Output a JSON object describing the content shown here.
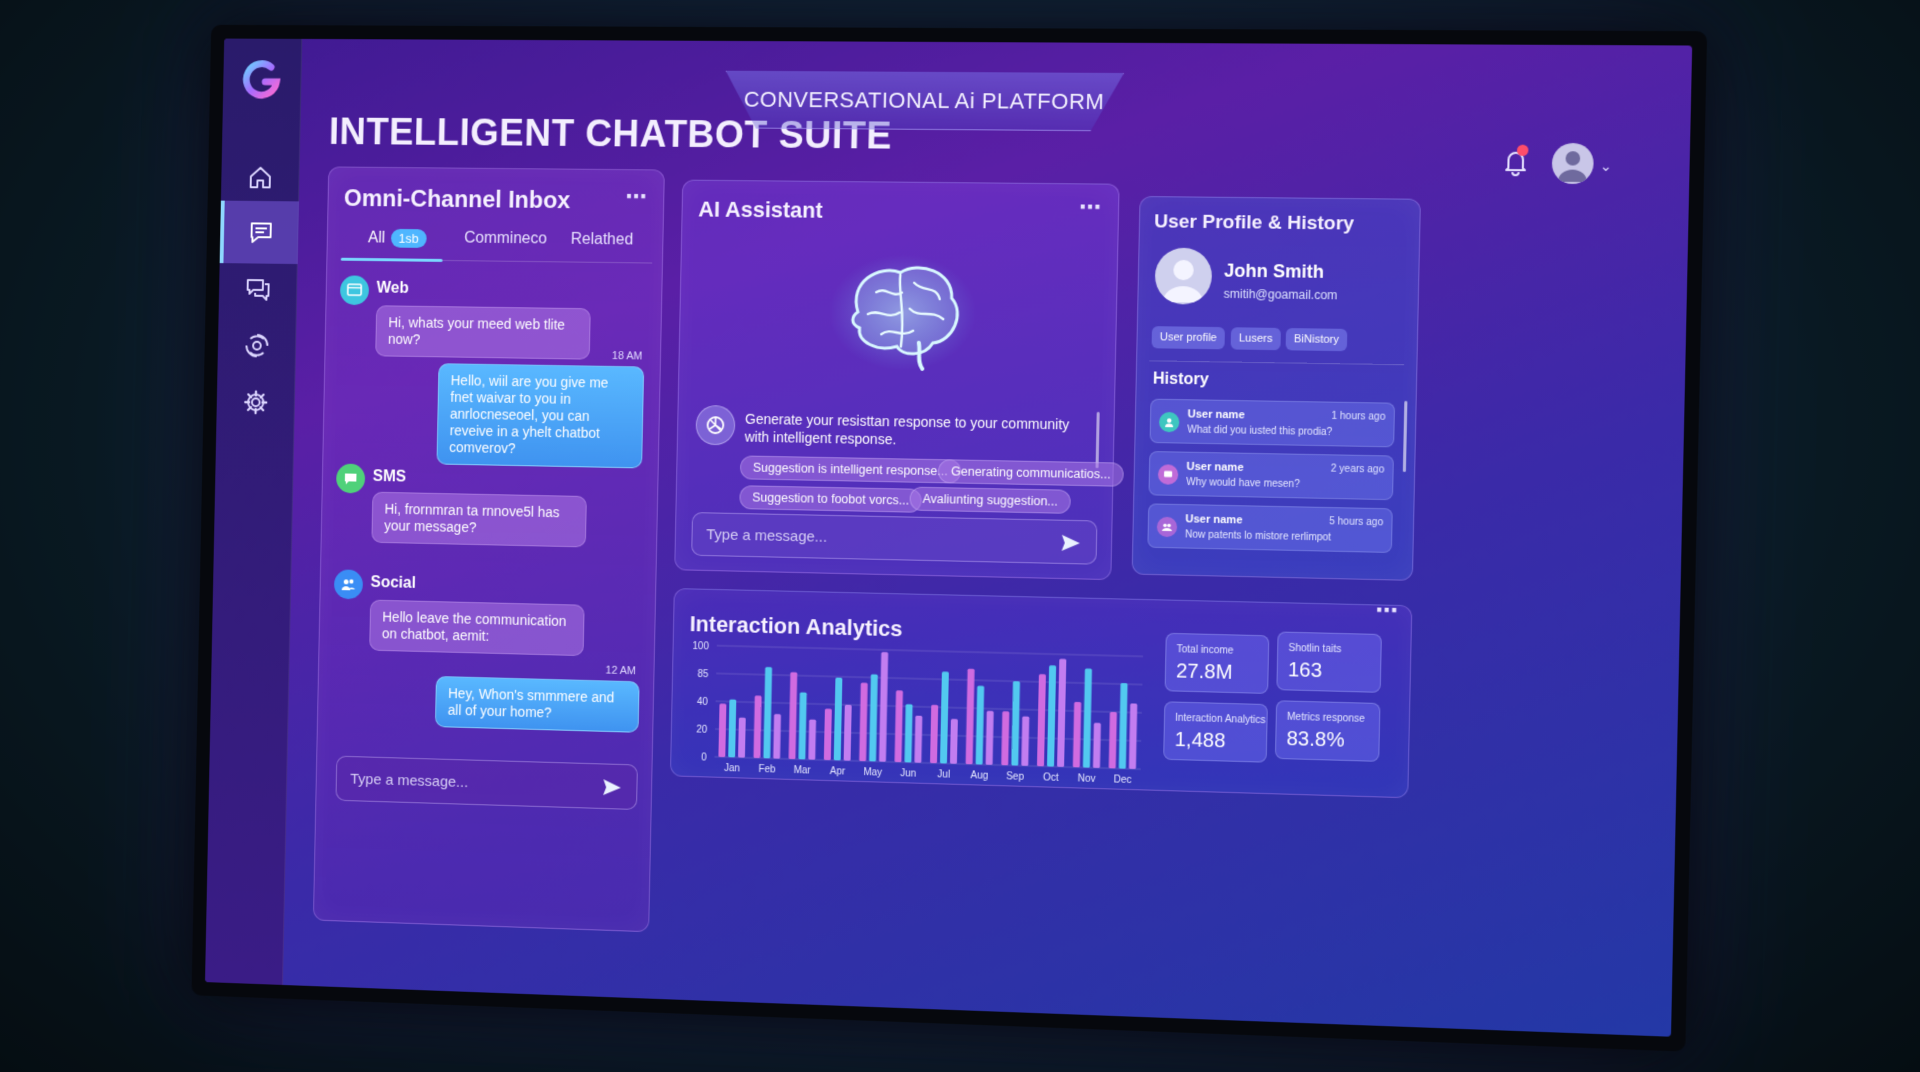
{
  "app": {
    "title": "INTELLIGENT CHATBOT SUITE",
    "platform_label": "CONVERSATIONAL Ai PLATFORM"
  },
  "sidebar": {
    "items": [
      {
        "icon": "home-icon"
      },
      {
        "icon": "message-icon",
        "active": true
      },
      {
        "icon": "chat-bubbles-icon"
      },
      {
        "icon": "ai-network-icon"
      },
      {
        "icon": "gear-icon"
      }
    ]
  },
  "inbox": {
    "title": "Omni-Channel Inbox",
    "tabs": [
      {
        "label": "All",
        "badge": "1sb"
      },
      {
        "label": "Commineco"
      },
      {
        "label": "Relathed"
      }
    ],
    "channels": [
      {
        "label": "Web",
        "icon": "web-icon",
        "color": "#3ec6e0"
      },
      {
        "label": "SMS",
        "icon": "sms-icon",
        "color": "#4fd17a"
      },
      {
        "label": "Social",
        "icon": "users-icon",
        "color": "#3a8df5"
      }
    ],
    "messages": {
      "web_in": "Hi, whats your meed web tlite now?",
      "time1": "18 AM",
      "web_out": "Hello, wiil are you give me fnet waivar to you in anrlocneseoel, you can reveive in a yhelt chatbot comverov?",
      "sms_in": "Hi, frornmran ta rnnove5l has your message?",
      "social_in": "Hello leave the communication on chatbot, aemit:",
      "time2": "12 AM",
      "social_out": "Hey, Whon's smmmere and all of your home?"
    },
    "input_placeholder": "Type a message..."
  },
  "assistant": {
    "title": "AI Assistant",
    "response": "Generate your resisttan response to your community with intelligent response.",
    "chips": [
      "Suggestion is intelligent response...",
      "Generating communicatios...",
      "Suggestion to foobot vorcs...",
      "Avaliunting suggestion..."
    ],
    "input_placeholder": "Type a message..."
  },
  "profile": {
    "title": "User Profile & History",
    "name": "John Smith",
    "email": "smitih@goamail.com",
    "tags": [
      "User profile",
      "Lusers",
      "BiNistory"
    ],
    "history_title": "History",
    "history": [
      {
        "user": "User name",
        "ago": "1 hours ago",
        "msg": "What did you iusted this prodia?",
        "color": "#3ec6c0"
      },
      {
        "user": "User name",
        "ago": "2 years ago",
        "msg": "Why would have mesen?",
        "color": "#c06bd8"
      },
      {
        "user": "User name",
        "ago": "5 hours ago",
        "msg": "Now patents lo mistore rerlimpot",
        "color": "#a866d8"
      }
    ]
  },
  "analytics": {
    "title": "Interaction Analytics",
    "metrics": [
      {
        "label": "Total income",
        "value": "27.8M"
      },
      {
        "label": "Shotlin taits",
        "value": "163"
      },
      {
        "label": "Interaction Analytics",
        "value": "1,488"
      },
      {
        "label": "Metrics response",
        "value": "83.8%"
      }
    ]
  },
  "chart_data": {
    "type": "bar",
    "categories": [
      "Jan",
      "Feb",
      "Mar",
      "Apr",
      "May",
      "Jun",
      "Jul",
      "Aug",
      "Sep",
      "Oct",
      "Nov",
      "Dec"
    ],
    "y_ticks": [
      "100",
      "85",
      "40",
      "20",
      "0"
    ],
    "series": [
      {
        "color": "#d06be0",
        "values": [
          48,
          56,
          78,
          46,
          70,
          64,
          52,
          85,
          48,
          82,
          58,
          50
        ]
      },
      {
        "color": "#52c9f0",
        "values": [
          52,
          82,
          60,
          74,
          78,
          52,
          82,
          70,
          75,
          90,
          88,
          76
        ]
      },
      {
        "color": "#c27df0",
        "values": [
          36,
          40,
          36,
          50,
          98,
          42,
          40,
          48,
          44,
          96,
          40,
          58
        ]
      }
    ],
    "ylim": [
      0,
      100
    ]
  }
}
